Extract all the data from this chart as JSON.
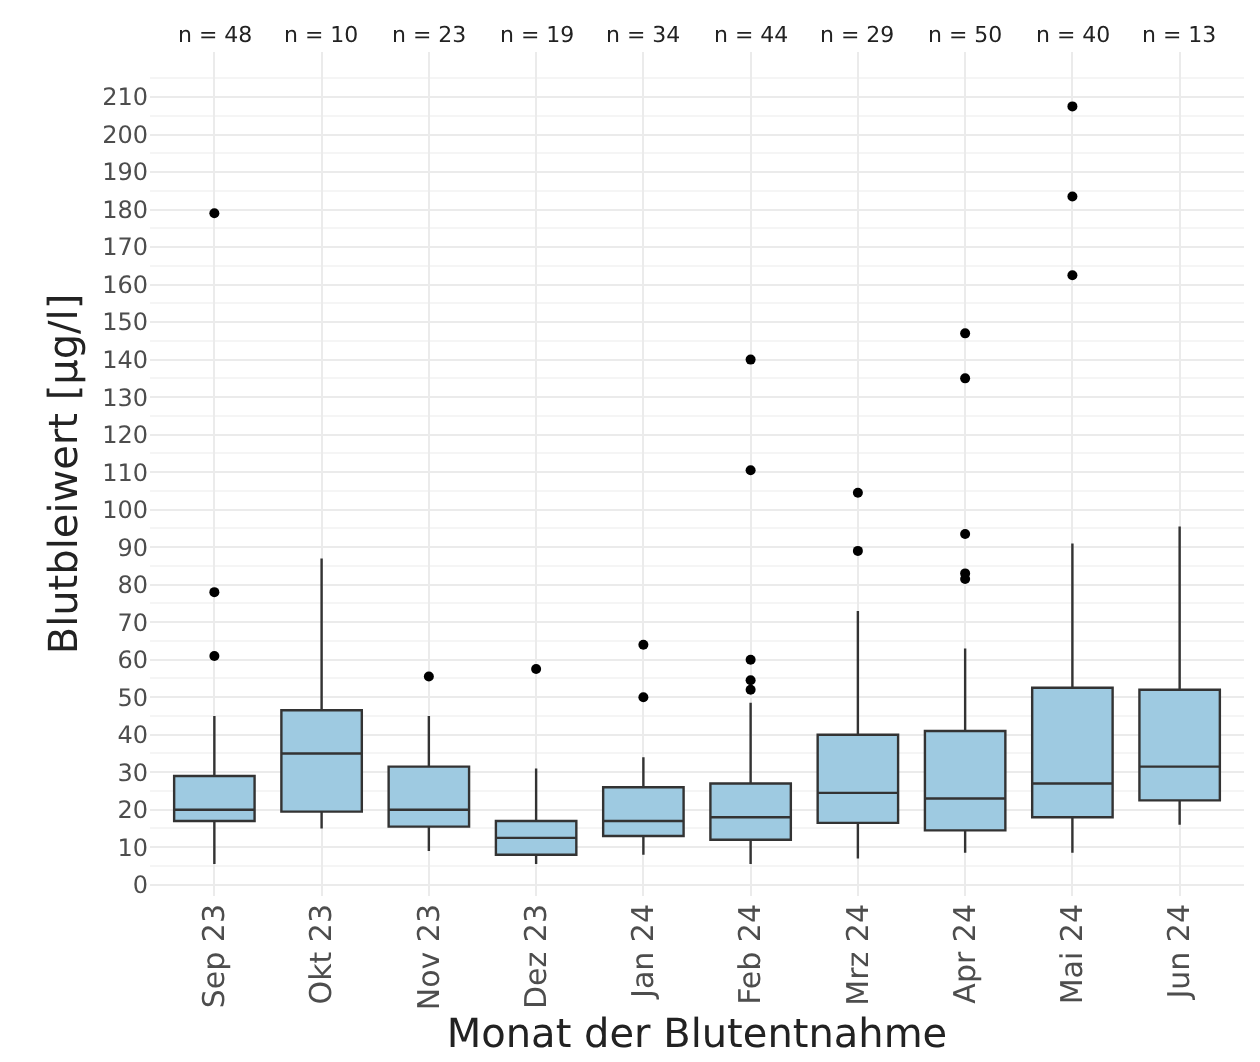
{
  "chart_data": {
    "type": "box",
    "xlabel": "Monat der Blutentnahme",
    "ylabel": "Blutbleiwert [µg/l]",
    "categories": [
      "Sep 23",
      "Okt 23",
      "Nov 23",
      "Dez 23",
      "Jan 24",
      "Feb 24",
      "Mrz 24",
      "Apr 24",
      "Mai 24",
      "Jun 24"
    ],
    "color": "#9ecae1",
    "boxes": [
      {
        "low": 5.5,
        "q1": 17,
        "median": 20,
        "q3": 29,
        "high": 45,
        "outliers": [
          61,
          78,
          179
        ]
      },
      {
        "low": 15,
        "q1": 19.5,
        "median": 35,
        "q3": 46.5,
        "high": 87
      },
      {
        "low": 9,
        "q1": 15.5,
        "median": 20,
        "q3": 31.5,
        "high": 45,
        "outliers": [
          55.5
        ]
      },
      {
        "low": 5.5,
        "q1": 8,
        "median": 12.5,
        "q3": 17,
        "high": 31,
        "outliers": [
          57.5
        ]
      },
      {
        "low": 8,
        "q1": 13,
        "median": 17,
        "q3": 26,
        "high": 34,
        "outliers": [
          50,
          64
        ]
      },
      {
        "low": 5.5,
        "q1": 12,
        "median": 18,
        "q3": 27,
        "high": 48.5,
        "outliers": [
          52,
          54.5,
          60,
          110.5,
          140
        ]
      },
      {
        "low": 7,
        "q1": 16.5,
        "median": 24.5,
        "q3": 40,
        "high": 73,
        "outliers": [
          89,
          104.5
        ]
      },
      {
        "low": 8.5,
        "q1": 14.5,
        "median": 23,
        "q3": 41,
        "high": 63,
        "outliers": [
          81.5,
          83,
          93.5,
          135,
          147
        ]
      },
      {
        "low": 8.5,
        "q1": 18,
        "median": 27,
        "q3": 52.5,
        "high": 91,
        "outliers": [
          162.5,
          183.5,
          207.5
        ]
      },
      {
        "low": 16,
        "q1": 22.5,
        "median": 31.5,
        "q3": 52,
        "high": 95.5
      }
    ],
    "ylim": [
      -3,
      222
    ],
    "yticks": [
      0,
      10,
      20,
      30,
      40,
      50,
      60,
      70,
      80,
      90,
      100,
      110,
      120,
      130,
      140,
      150,
      160,
      170,
      180,
      190,
      200,
      210
    ],
    "grid": true,
    "annotations": [
      "n = 48",
      "n = 10",
      "n = 23",
      "n = 19",
      "n = 34",
      "n = 44",
      "n = 29",
      "n = 50",
      "n = 40",
      "n = 13"
    ]
  }
}
